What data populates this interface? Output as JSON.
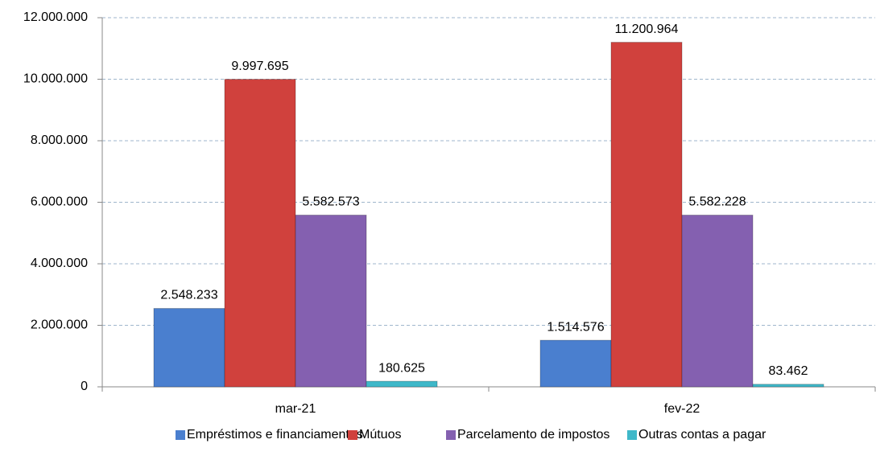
{
  "chart_data": {
    "type": "bar",
    "categories": [
      "mar-21",
      "fev-22"
    ],
    "series": [
      {
        "name": "Empréstimos e financiamentos",
        "color": "#4a7fcf",
        "values": [
          2548233,
          1514576
        ],
        "value_labels": [
          "2.548.233",
          "1.514.576"
        ]
      },
      {
        "name": "Mútuos",
        "color": "#d0413d",
        "values": [
          9997695,
          11200964
        ],
        "value_labels": [
          "9.997.695",
          "11.200.964"
        ]
      },
      {
        "name": "Parcelamento de impostos",
        "color": "#8460b0",
        "values": [
          5582573,
          5582228
        ],
        "value_labels": [
          "5.582.573",
          "5.582.228"
        ]
      },
      {
        "name": "Outras contas a pagar",
        "color": "#3fb8c9",
        "values": [
          180625,
          83462
        ],
        "value_labels": [
          "180.625",
          "83.462"
        ]
      }
    ],
    "ylim": [
      0,
      12000000
    ],
    "yticks": [
      0,
      {
        "value": 2000000,
        "label": "2.000.000"
      },
      {
        "value": 4000000,
        "label": "4.000.000"
      },
      {
        "value": 6000000,
        "label": "6.000.000"
      },
      {
        "value": 8000000,
        "label": "8.000.000"
      },
      {
        "value": 10000000,
        "label": "10.000.000"
      },
      {
        "value": 12000000,
        "label": "12.000.000"
      }
    ],
    "grid": true,
    "legend": "bottom"
  }
}
